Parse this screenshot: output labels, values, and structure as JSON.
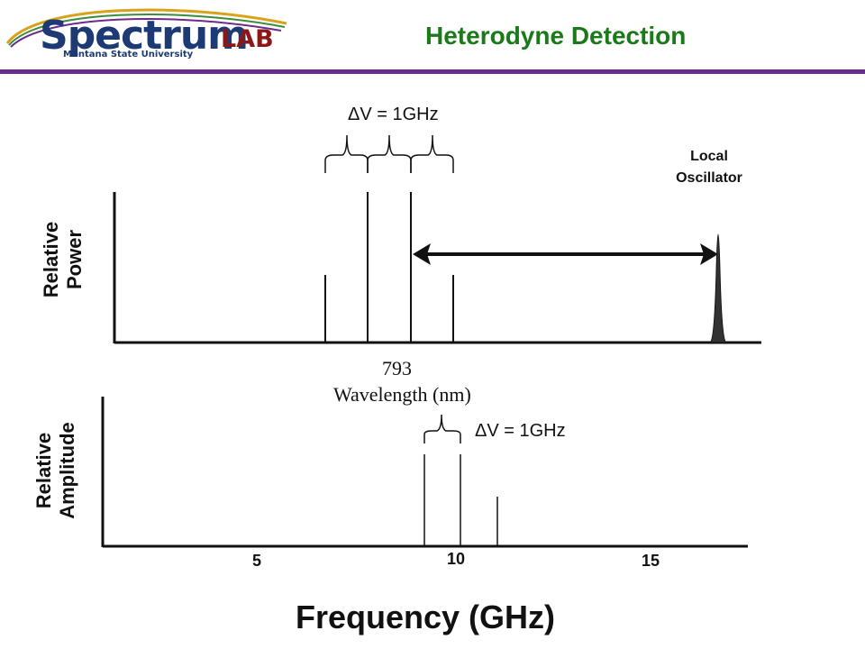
{
  "logo": {
    "word": "Spectrum",
    "lab": "LAB",
    "university": "Montana State University"
  },
  "title": "Heterodyne Detection",
  "top_plot": {
    "y_label_line1": "Relative",
    "y_label_line2": "Power",
    "spacing_label": "ΔV = 1GHz",
    "lo_label_line1": "Local",
    "lo_label_line2": "Oscillator",
    "center_tick": "793",
    "x_label": "Wavelength (nm)"
  },
  "bottom_plot": {
    "y_label_line1": "Relative",
    "y_label_line2": "Amplitude",
    "spacing_label": "ΔV = 1GHz",
    "ticks": [
      "5",
      "10",
      "15"
    ],
    "x_label": "Frequency (GHz)"
  },
  "colors": {
    "title": "#1a7a1a",
    "rule": "#6d2b8c",
    "logo_blue": "#1d3a74",
    "logo_red": "#8a1818"
  }
}
